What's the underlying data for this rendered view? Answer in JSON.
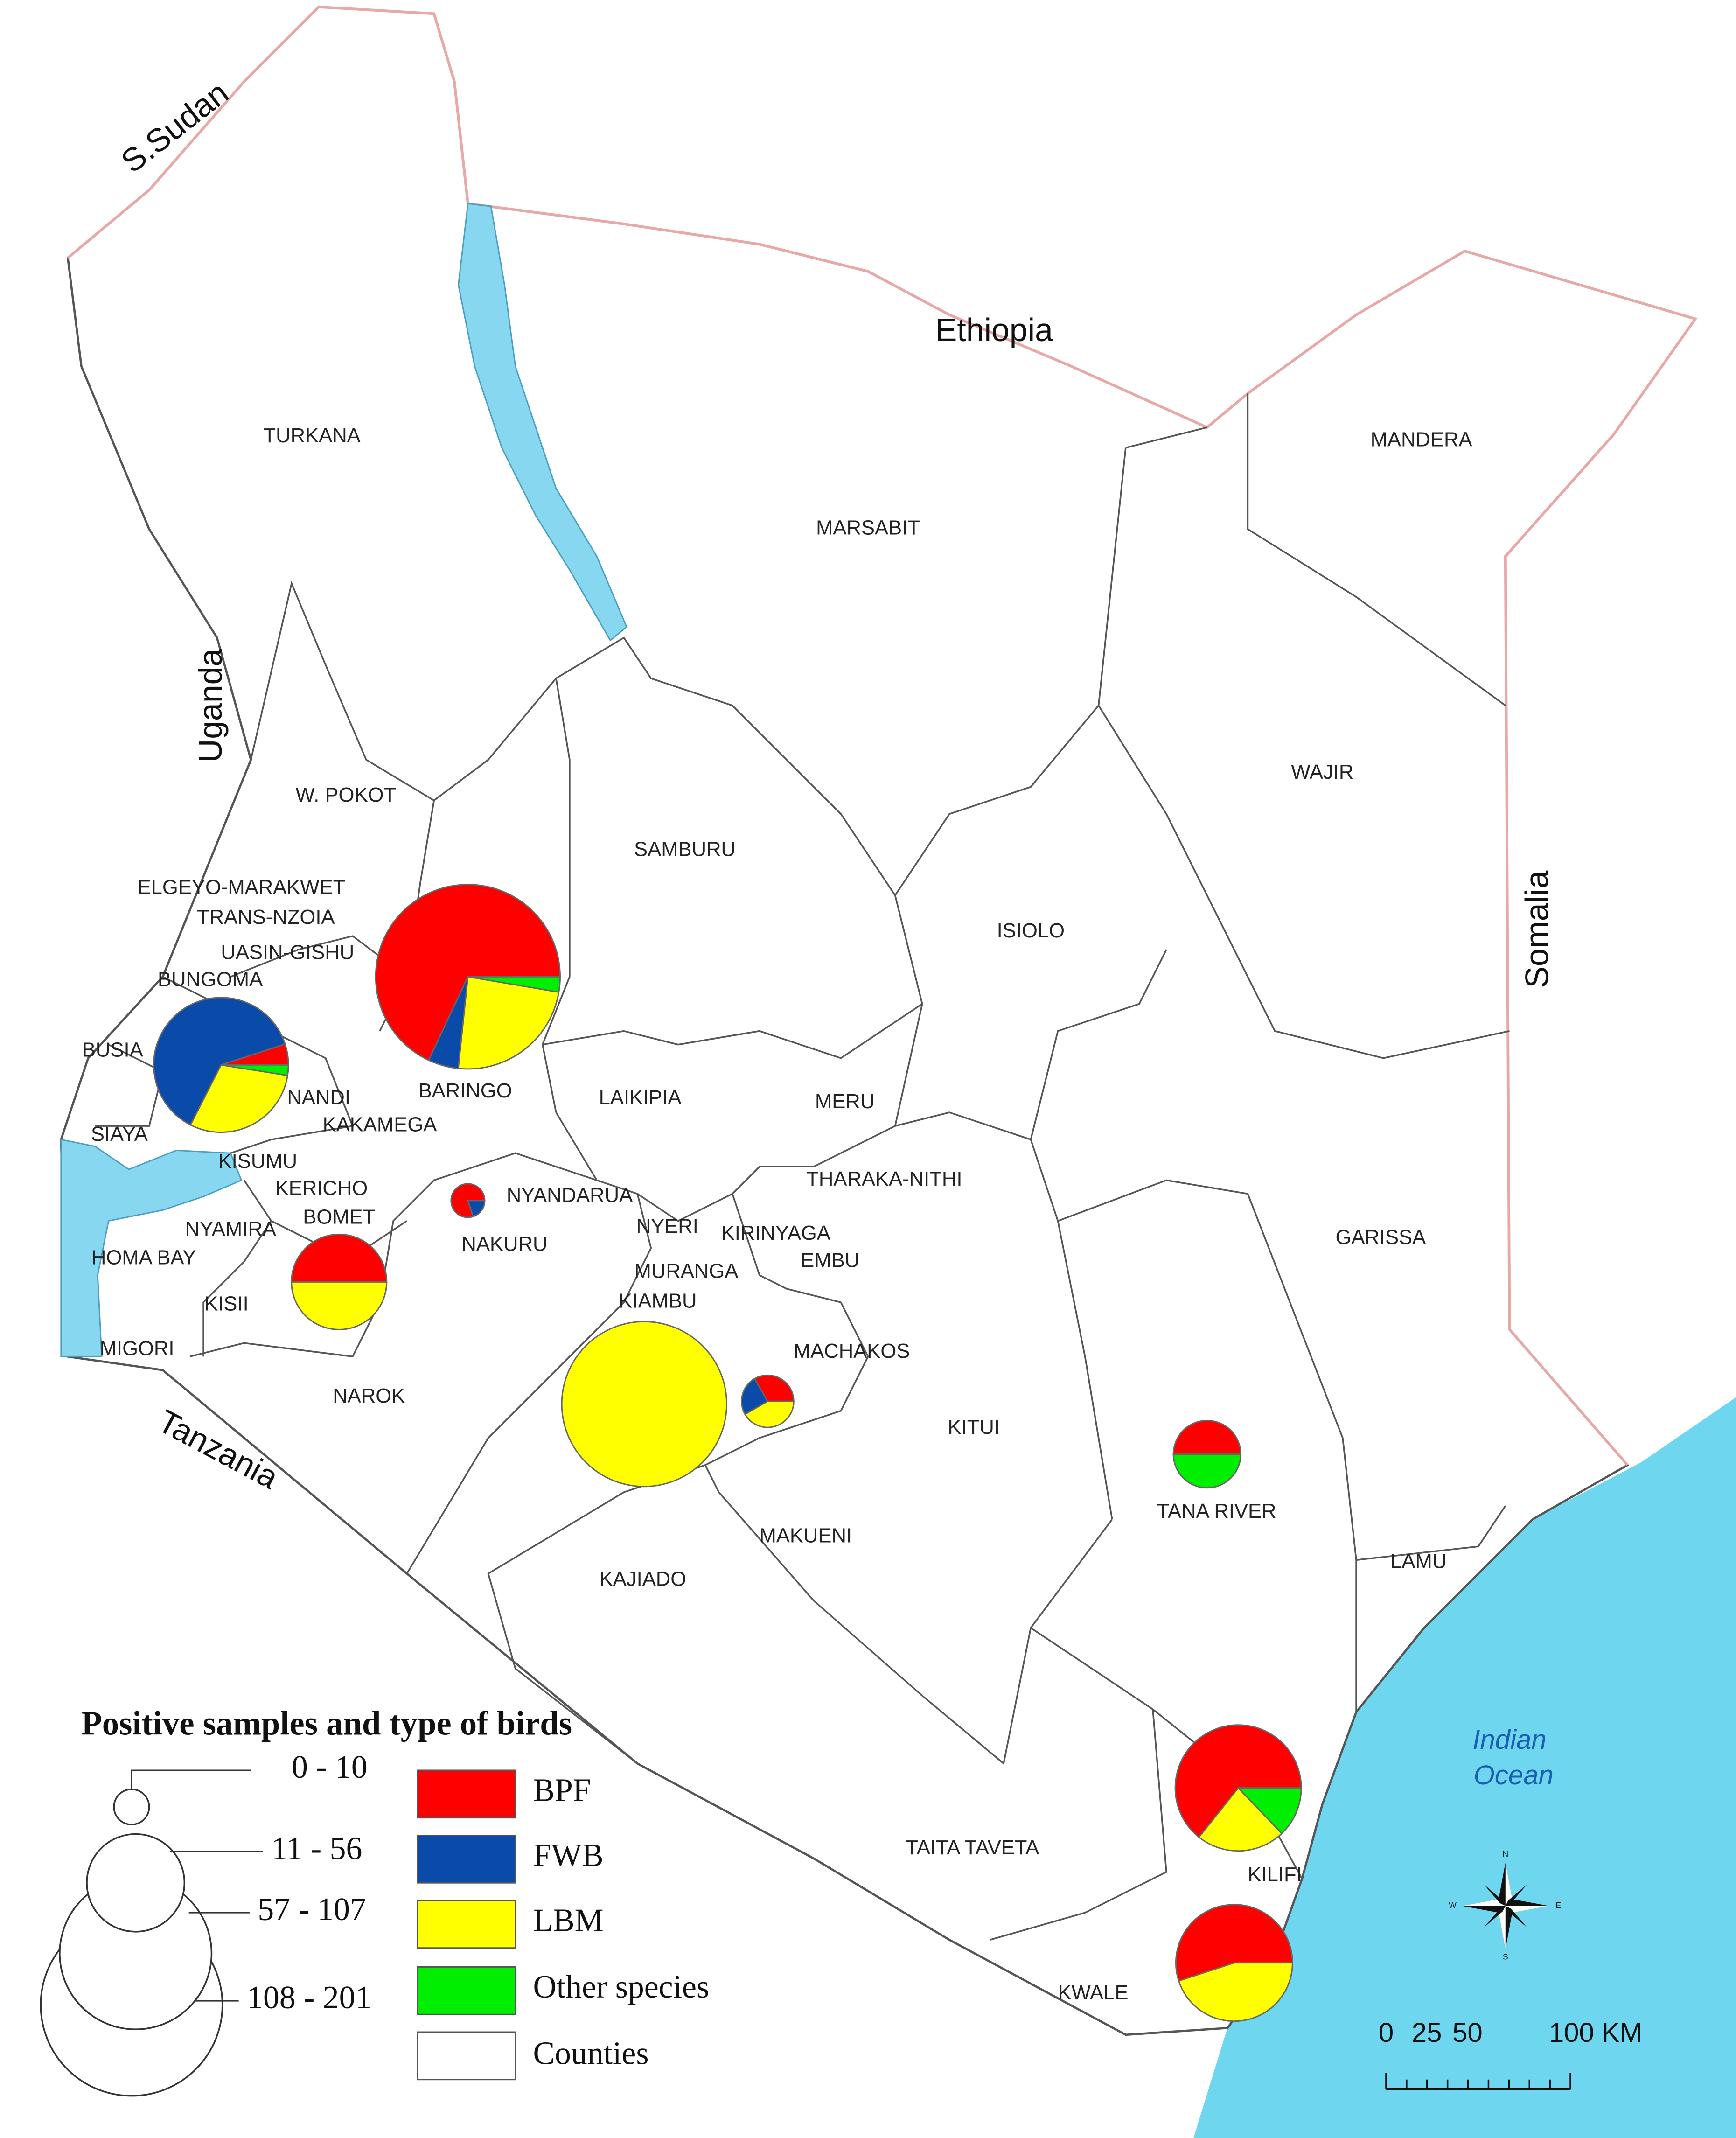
{
  "map": {
    "countries": [
      "S.Sudan",
      "Ethiopia",
      "Uganda",
      "Somalia",
      "Tanzania"
    ],
    "ocean_label": [
      "Indian",
      "Ocean"
    ],
    "counties": [
      "TURKANA",
      "MARSABIT",
      "MANDERA",
      "WAJIR",
      "W. POKOT",
      "SAMBURU",
      "ISIOLO",
      "ELGEYO-MARAKWET",
      "TRANS-NZOIA",
      "UASIN-GISHU",
      "BUNGOMA",
      "BUSIA",
      "BARINGO",
      "LAIKIPIA",
      "MERU",
      "NANDI",
      "KAKAMEGA",
      "SIAYA",
      "KISUMU",
      "THARAKA-NITHI",
      "KERICHO",
      "NYANDARUA",
      "BOMET",
      "NYAMIRA",
      "NYERI",
      "KIRINYAGA",
      "EMBU",
      "GARISSA",
      "NAKURU",
      "HOMA BAY",
      "MURANGA",
      "KIAMBU",
      "KISII",
      "MIGORI",
      "MACHAKOS",
      "NAROK",
      "KITUI",
      "TANA RIVER",
      "MAKUENI",
      "LAMU",
      "KAJIADO",
      "TAITA TAVETA",
      "KILIFI",
      "KWALE"
    ],
    "pies": [
      {
        "values": [
          102,
          8,
          36,
          4
        ]
      },
      {
        "values": [
          4,
          50,
          24,
          2
        ]
      },
      {
        "values": [
          0,
          0,
          120,
          0
        ]
      },
      {
        "values": [
          45,
          0,
          16,
          9
        ]
      },
      {
        "values": [
          33,
          0,
          27,
          0
        ]
      },
      {
        "values": [
          20,
          0,
          20,
          0
        ]
      },
      {
        "values": [
          4,
          3,
          5,
          0
        ]
      },
      {
        "values": [
          10,
          0,
          0,
          10
        ]
      },
      {
        "values": [
          4,
          1,
          0,
          0
        ]
      }
    ]
  },
  "legend": {
    "title": "Positive samples and type of birds",
    "size_classes": [
      "0 - 10",
      "11 - 56",
      "57 - 107",
      "108 - 201"
    ],
    "items": [
      {
        "label": "BPF",
        "color": "#ff0000"
      },
      {
        "label": "FWB",
        "color": "#0a4aa8"
      },
      {
        "label": "LBM",
        "color": "#ffff00"
      },
      {
        "label": "Other species",
        "color": "#00ee00"
      }
    ],
    "counties_label": "Counties"
  },
  "scale": {
    "labels": [
      "0",
      "25",
      "50",
      "100 KM"
    ]
  },
  "compass": [
    "N",
    "E",
    "S",
    "W"
  ]
}
